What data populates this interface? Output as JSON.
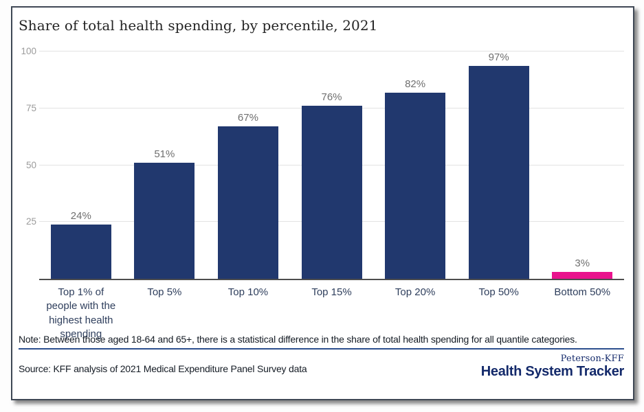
{
  "title": "Share of total health spending, by percentile, 2021",
  "chart_data": {
    "type": "bar",
    "title": "Share of total health spending, by percentile, 2021",
    "categories": [
      "Top 1% of people with the highest health spending",
      "Top 5%",
      "Top 10%",
      "Top 15%",
      "Top 20%",
      "Top 50%",
      "Bottom 50%"
    ],
    "values": [
      24,
      51,
      67,
      76,
      82,
      97,
      3
    ],
    "data_labels": [
      "24%",
      "51%",
      "67%",
      "76%",
      "82%",
      "97%",
      "3%"
    ],
    "bar_colors": [
      "#21386e",
      "#21386e",
      "#21386e",
      "#21386e",
      "#21386e",
      "#21386e",
      "#e9138d"
    ],
    "y_ticks": [
      25,
      50,
      75,
      100
    ],
    "ylim": [
      0,
      100
    ],
    "grid": true,
    "legend_position": "none",
    "xlabel": "",
    "ylabel": ""
  },
  "footer": {
    "note": "Note: Between those aged 18-64 and 65+, there is a statistical difference in the share of total health spending for all quantile categories.",
    "source": "Source: KFF analysis of 2021 Medical Expenditure Panel Survey data",
    "logo_top": "Peterson-KFF",
    "logo_bottom": "Health System Tracker"
  },
  "colors": {
    "bar_navy": "#21386e",
    "bar_pink": "#e9138d",
    "gridline": "#e3e3e3",
    "axis_line": "#4d4d4d",
    "tick_label": "#9b9b9b",
    "value_label": "#6f6f6f",
    "category_label": "#2e3e5c",
    "rule_navy": "#2b4e8d",
    "logo_navy": "#13296a"
  }
}
